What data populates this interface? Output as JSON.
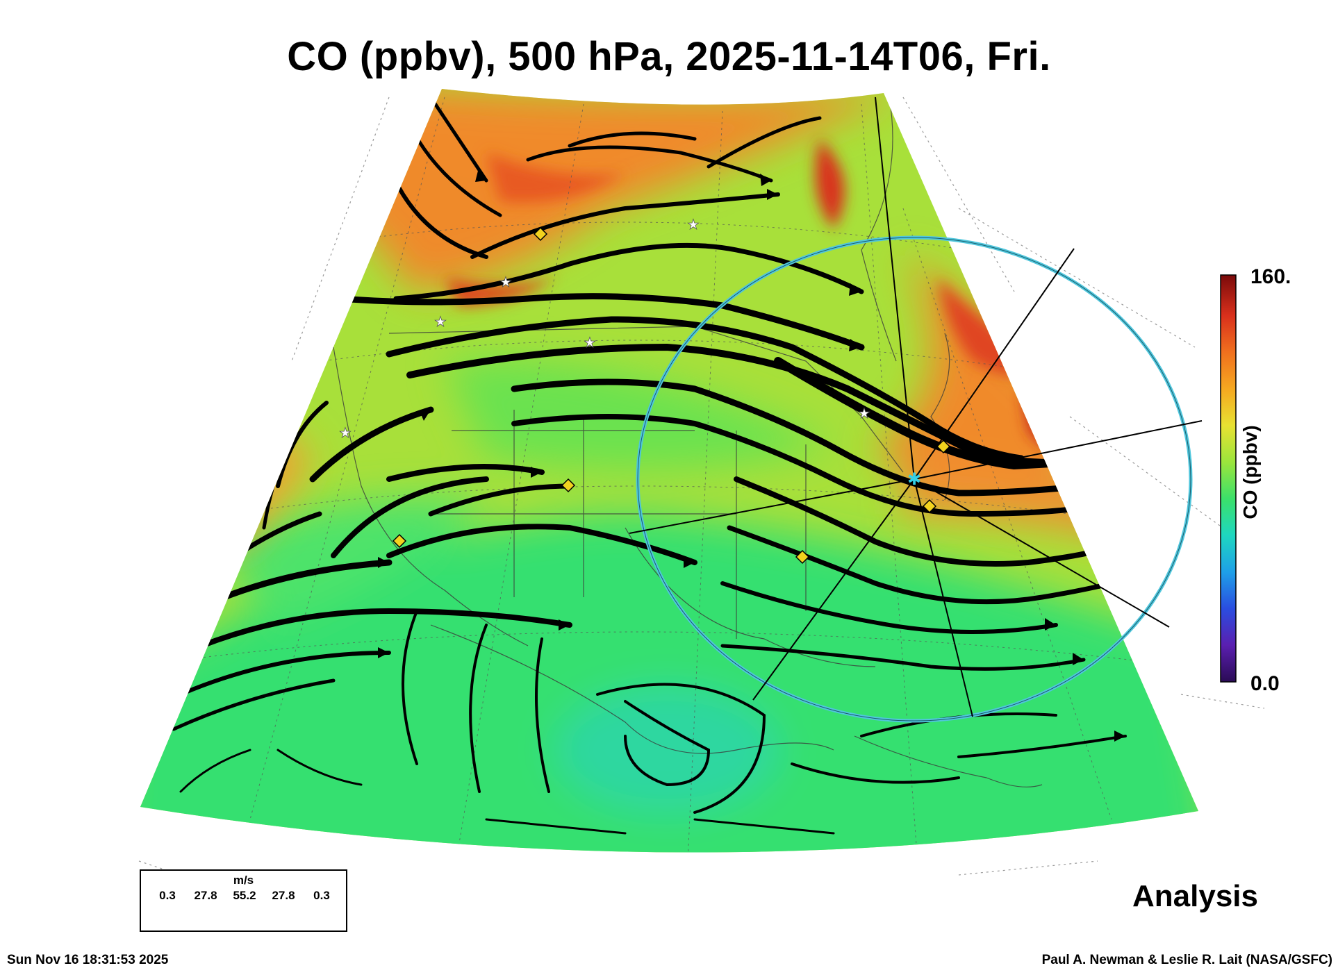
{
  "title": "CO (ppbv), 500 hPa, 2025-11-14T06, Fri.",
  "colorbar": {
    "label": "CO (ppbv)",
    "max_label": "160.",
    "min_label": "0.0",
    "range": [
      0,
      160
    ],
    "stops": [
      "#2a0b55",
      "#5a1fb0",
      "#2a4de0",
      "#1ea0e8",
      "#1ed7c0",
      "#3be06a",
      "#9be53c",
      "#e8e132",
      "#f5a820",
      "#f0701e",
      "#d9301c",
      "#7a0a0a"
    ]
  },
  "legend": {
    "units": "m/s",
    "values": [
      "0.3",
      "27.8",
      "55.2",
      "27.8",
      "0.3"
    ]
  },
  "analysis_label": "Analysis",
  "footer": {
    "timestamp": "Sun Nov 16 18:31:53 2025",
    "credit": "Paul A. Newman & Leslie R. Lait (NASA/GSFC)"
  },
  "colors": {
    "high_co": "#f08a2a",
    "mid_co": "#a8e03a",
    "low_co": "#35e070",
    "ring": "#4fc6dc",
    "marker_diamond": "#f2d21e",
    "marker_star": "#ffffff",
    "center_star": "#33cfe8"
  }
}
